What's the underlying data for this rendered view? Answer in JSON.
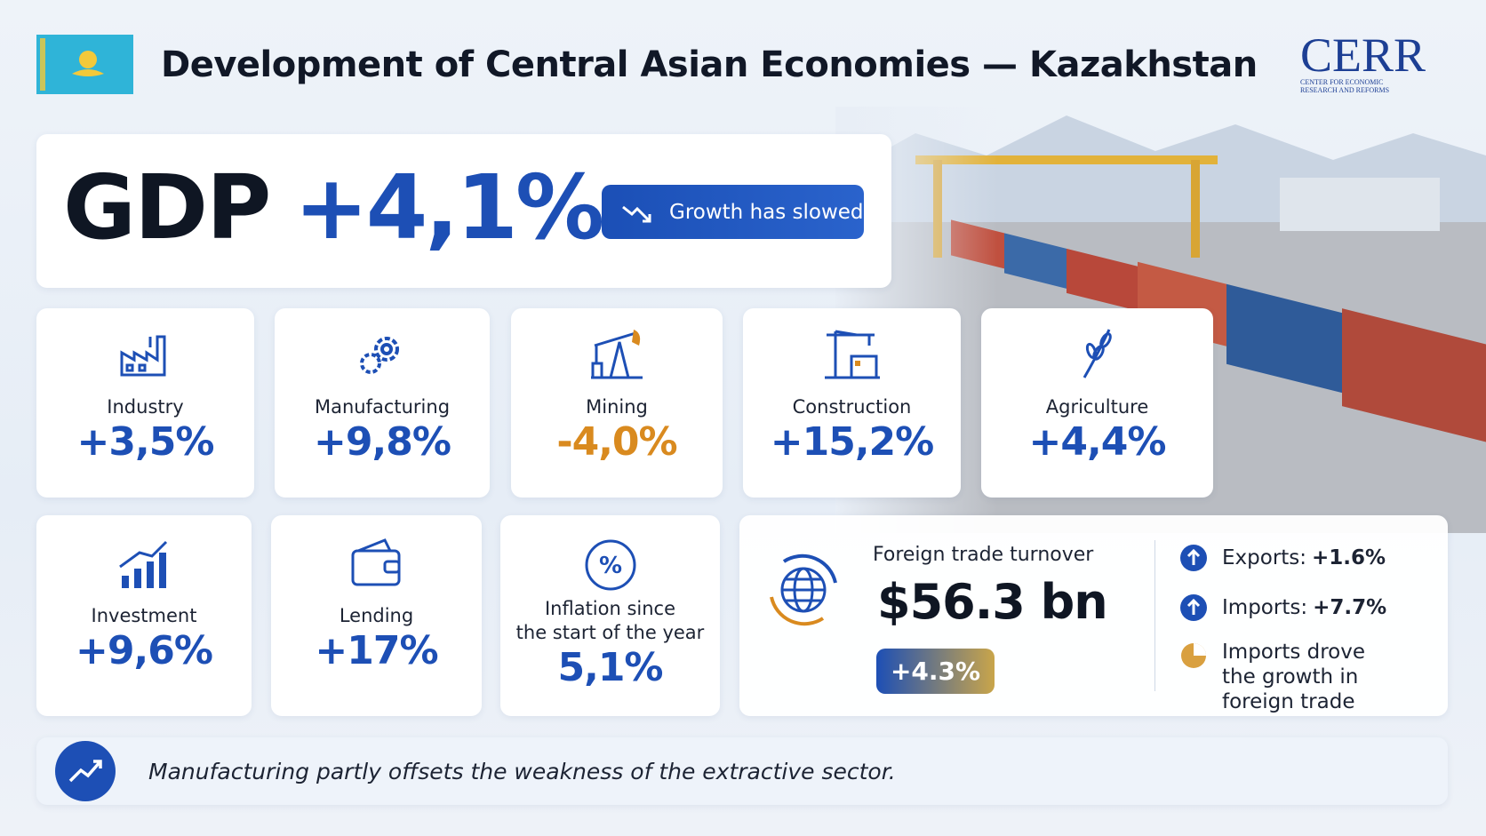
{
  "header": {
    "title": "Development of Central Asian Economies — Kazakhstan",
    "logo": {
      "name": "CERR",
      "subtitle_lines": [
        "CENTER FOR ECONOMIC",
        "RESEARCH AND REFORMS"
      ]
    }
  },
  "gdp": {
    "label": "GDP",
    "value": "+4,1%",
    "badge": "Growth has slowed"
  },
  "sectors": [
    {
      "label": "Industry",
      "value": "+3,5%"
    },
    {
      "label": "Manufacturing",
      "value": "+9,8%"
    },
    {
      "label": "Mining",
      "value": "-4,0%"
    },
    {
      "label": "Construction",
      "value": "+15,2%"
    },
    {
      "label": "Agriculture",
      "value": "+4,4%"
    }
  ],
  "indicators": [
    {
      "label_lines": [
        "Investment"
      ],
      "value": "+9,6%"
    },
    {
      "label_lines": [
        "Lending"
      ],
      "value": "+17%"
    },
    {
      "label_lines": [
        "Inflation since",
        "the start of the year"
      ],
      "value": "5,1%"
    }
  ],
  "trade": {
    "title": "Foreign trade turnover",
    "value": "$56.3 bn",
    "change": "+4.3%",
    "exports": {
      "label": "Exports:",
      "value": "+1.6%"
    },
    "imports": {
      "label": "Imports:",
      "value": "+7.7%"
    },
    "note": "Imports drove the growth in foreign trade"
  },
  "footer": "Manufacturing partly offsets the weakness of the extractive sector."
}
